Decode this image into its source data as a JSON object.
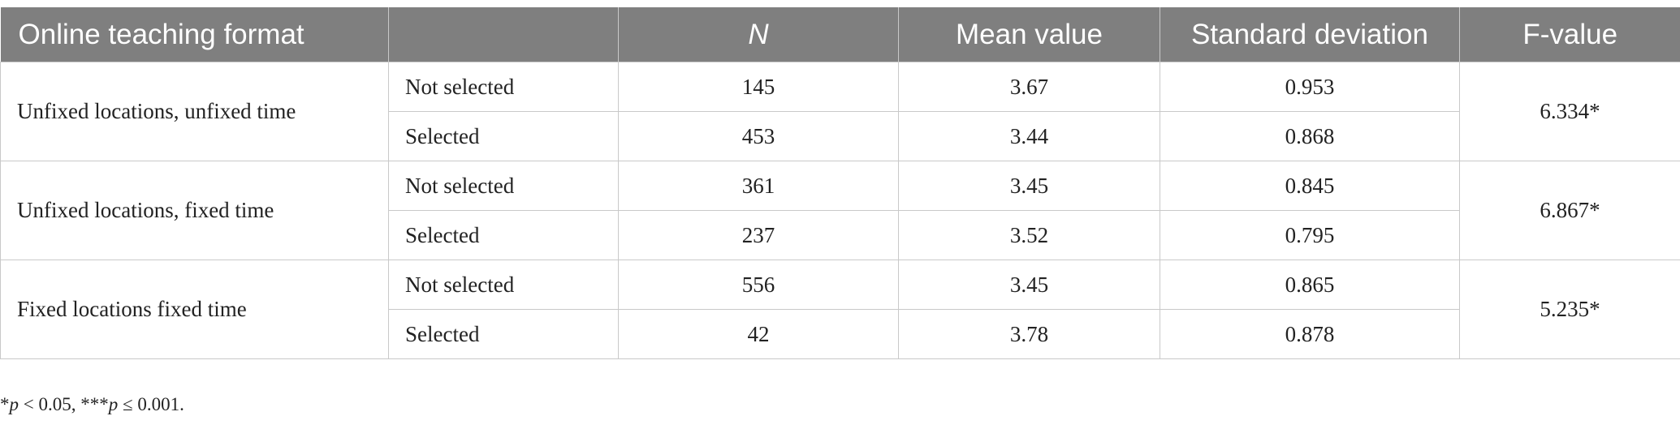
{
  "table": {
    "header": [
      "Online teaching format",
      "",
      "N",
      "Mean value",
      "Standard deviation",
      "F-value"
    ],
    "groups": [
      {
        "format": "Unfixed locations, unfixed time",
        "f_value": "6.334*",
        "rows": [
          [
            "Not selected",
            145,
            3.67,
            0.953
          ],
          [
            "Selected",
            453,
            3.44,
            0.868
          ]
        ]
      },
      {
        "format": "Unfixed locations, fixed time",
        "f_value": "6.867*",
        "rows": [
          [
            "Not selected",
            361,
            3.45,
            0.845
          ],
          [
            "Selected",
            237,
            3.52,
            0.795
          ]
        ]
      },
      {
        "format": "Fixed locations fixed time",
        "f_value": "5.235*",
        "rows": [
          [
            "Not selected",
            556,
            3.45,
            0.865
          ],
          [
            "Selected",
            42,
            3.78,
            0.878
          ]
        ]
      }
    ]
  },
  "footnote": [
    "*",
    "p",
    " < 0.05, ***",
    "p",
    " ≤ 0.001."
  ]
}
